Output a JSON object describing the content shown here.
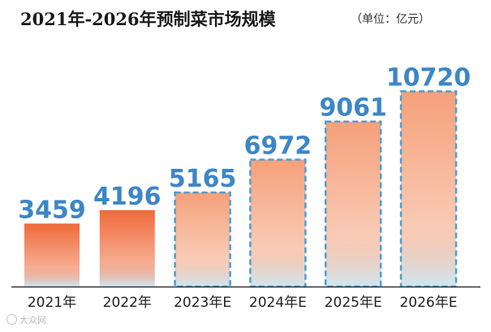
{
  "header": {
    "title": "2021年-2026年预制菜市场规模",
    "unit": "（单位：亿元）"
  },
  "watermark": "大众网",
  "colors": {
    "bar_solid_top": "#ef6a3a",
    "bar_est_top": "#f5a07a",
    "bar_bottom": "#cfe8f3",
    "value_label": "#3d86c6",
    "dash_border": "#4a9fd4",
    "axis": "#333333"
  },
  "chart_data": {
    "type": "bar",
    "categories": [
      "2021年",
      "2022年",
      "2023年E",
      "2024年E",
      "2025年E",
      "2026年E"
    ],
    "values": [
      3459,
      4196,
      5165,
      6972,
      9061,
      10720
    ],
    "estimated": [
      false,
      false,
      true,
      true,
      true,
      true
    ],
    "ylim": [
      0,
      11500
    ],
    "grid": false,
    "legend": "none"
  }
}
